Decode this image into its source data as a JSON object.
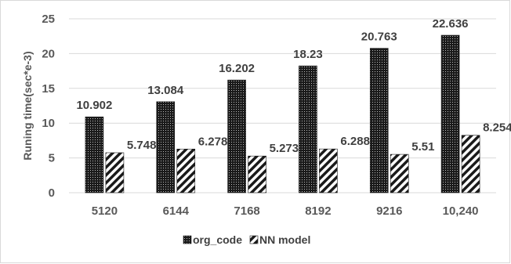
{
  "chart_data": {
    "type": "bar",
    "categories": [
      "5120",
      "6144",
      "7168",
      "8192",
      "9216",
      "10,240"
    ],
    "series": [
      {
        "name": "org_code",
        "values": [
          10.902,
          13.084,
          16.202,
          18.23,
          20.763,
          22.636
        ]
      },
      {
        "name": "NN model",
        "values": [
          5.748,
          6.278,
          5.273,
          6.288,
          5.51,
          8.254
        ]
      }
    ],
    "value_labels": [
      [
        "10.902",
        "13.084",
        "16.202",
        "18.23",
        "20.763",
        "22.636"
      ],
      [
        "5.748",
        "6.278",
        "5.273",
        "6.288",
        "5.51",
        "8.254"
      ]
    ],
    "ylabel": "Runing time(sec*e-3)",
    "xlabel": "",
    "ylim": [
      0,
      25
    ],
    "yticks": [
      "0",
      "5",
      "10",
      "15",
      "20",
      "25"
    ],
    "grid": true,
    "legend_position": "bottom",
    "colors": {
      "grid": "#d9d9d9",
      "bar_dark": "#1a1a1a",
      "bar_light": "#ffffff",
      "text": "#595959"
    },
    "patterns": [
      "dotted-dark",
      "diagonal-stripes"
    ]
  }
}
